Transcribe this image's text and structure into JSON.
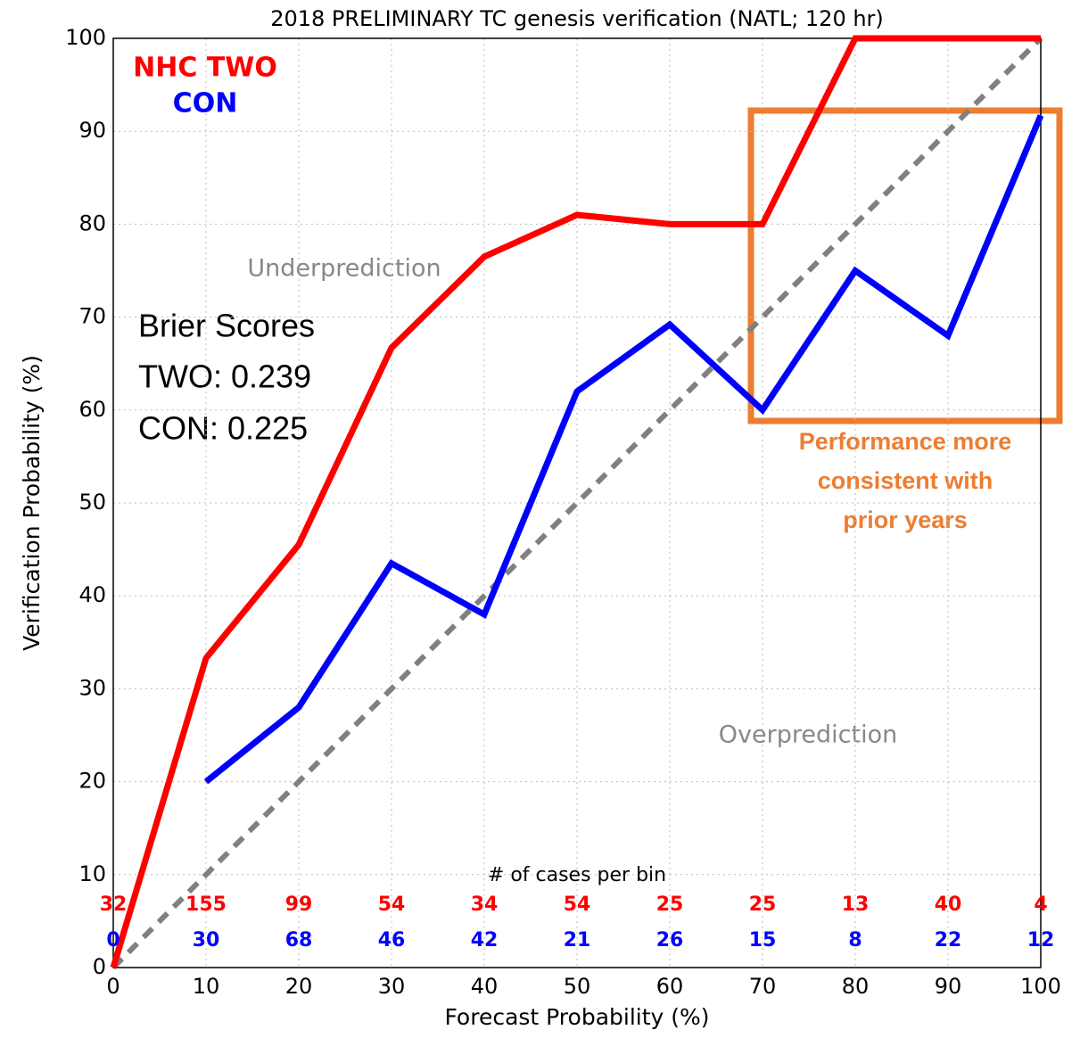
{
  "chart_data": {
    "type": "line",
    "title": "2018 PRELIMINARY TC genesis verification (NATL; 120 hr)",
    "x_label": "Forecast Probability (%)",
    "y_label": "Verification Probability (%)",
    "x": [
      0,
      10,
      20,
      30,
      40,
      50,
      60,
      70,
      80,
      90,
      100
    ],
    "series": [
      {
        "name": "NHC TWO",
        "color": "#ff0000",
        "values": [
          0,
          33.3,
          45.5,
          66.7,
          76.5,
          81,
          80,
          80,
          100,
          100,
          100
        ],
        "counts": [
          32,
          155,
          99,
          54,
          34,
          54,
          25,
          25,
          13,
          40,
          4
        ]
      },
      {
        "name": "CON",
        "color": "#0000ff",
        "values": [
          null,
          20,
          28,
          43.5,
          38,
          62,
          69.2,
          60,
          75,
          68,
          91.7
        ],
        "counts": [
          0,
          30,
          68,
          46,
          42,
          21,
          26,
          15,
          8,
          22,
          12
        ]
      }
    ],
    "counts_title": "# of cases per bin",
    "xlim": [
      0,
      100
    ],
    "ylim": [
      0,
      100
    ],
    "xticks": [
      0,
      10,
      20,
      30,
      40,
      50,
      60,
      70,
      80,
      90,
      100
    ],
    "yticks": [
      0,
      10,
      20,
      30,
      40,
      50,
      60,
      70,
      80,
      90,
      100
    ],
    "grid": true,
    "region_labels": [
      "Underprediction",
      "Overprediction"
    ],
    "brier_scores": [
      "Brier Scores",
      "TWO: 0.239",
      "CON: 0.225"
    ],
    "highlight_note": [
      "Performance more",
      "consistent with",
      "prior years"
    ]
  }
}
